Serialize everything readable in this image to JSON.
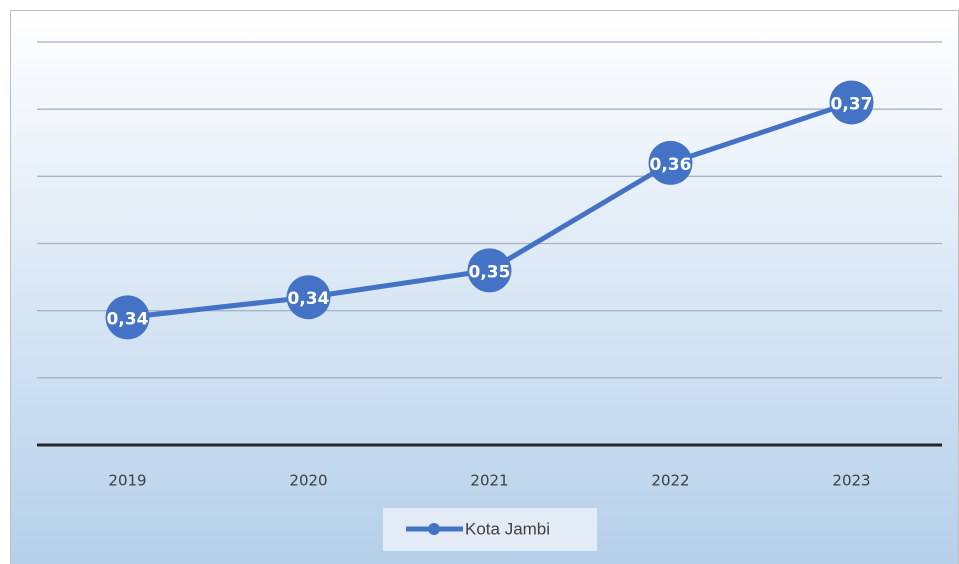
{
  "chart_data": {
    "type": "line",
    "categories": [
      "2019",
      "2020",
      "2021",
      "2022",
      "2023"
    ],
    "series": [
      {
        "name": "Kota Jambi",
        "color": "#4472c4",
        "values": [
          0.339,
          0.342,
          0.346,
          0.362,
          0.371
        ],
        "value_labels": [
          "0,34",
          "0,34",
          "0,35",
          "0,36",
          "0,37"
        ]
      }
    ],
    "ylim": [
      0.32,
      0.38
    ],
    "yticks": [
      0.32,
      0.33,
      0.34,
      0.35,
      0.36,
      0.37,
      0.38
    ],
    "grid": true,
    "legend": "bottom"
  }
}
